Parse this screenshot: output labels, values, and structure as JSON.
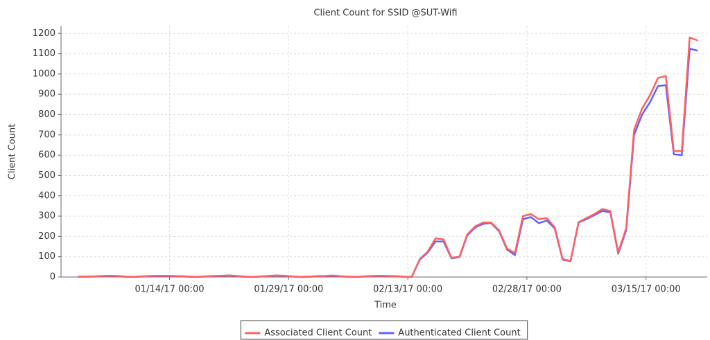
{
  "chart_data": {
    "type": "line",
    "title": "Client Count for SSID @SUT-Wifi",
    "x_label": "Time",
    "y_label": "Client Count",
    "x": [
      "01/02/17 12:00",
      "01/03/17 12:00",
      "01/04/17 12:00",
      "01/05/17 12:00",
      "01/06/17 12:00",
      "01/07/17 12:00",
      "01/08/17 12:00",
      "01/09/17 12:00",
      "01/10/17 12:00",
      "01/11/17 12:00",
      "01/12/17 12:00",
      "01/13/17 12:00",
      "01/14/17 12:00",
      "01/15/17 12:00",
      "01/16/17 12:00",
      "01/17/17 12:00",
      "01/18/17 12:00",
      "01/19/17 12:00",
      "01/20/17 12:00",
      "01/21/17 12:00",
      "01/22/17 12:00",
      "01/23/17 12:00",
      "01/24/17 12:00",
      "01/25/17 12:00",
      "01/26/17 12:00",
      "01/27/17 12:00",
      "01/28/17 12:00",
      "01/29/17 12:00",
      "01/30/17 12:00",
      "01/31/17 12:00",
      "02/01/17 12:00",
      "02/02/17 12:00",
      "02/03/17 12:00",
      "02/04/17 12:00",
      "02/05/17 12:00",
      "02/06/17 12:00",
      "02/07/17 12:00",
      "02/08/17 12:00",
      "02/09/17 12:00",
      "02/10/17 12:00",
      "02/11/17 12:00",
      "02/12/17 12:00",
      "02/13/17 12:00",
      "02/14/17 12:00",
      "02/15/17 12:00",
      "02/16/17 12:00",
      "02/17/17 12:00",
      "02/18/17 12:00",
      "02/19/17 12:00",
      "02/20/17 12:00",
      "02/21/17 12:00",
      "02/22/17 12:00",
      "02/23/17 12:00",
      "02/24/17 12:00",
      "02/25/17 12:00",
      "02/26/17 12:00",
      "02/27/17 12:00",
      "02/28/17 12:00",
      "03/01/17 12:00",
      "03/02/17 12:00",
      "03/03/17 12:00",
      "03/04/17 12:00",
      "03/05/17 12:00",
      "03/06/17 12:00",
      "03/07/17 12:00",
      "03/08/17 12:00",
      "03/09/17 12:00",
      "03/10/17 12:00",
      "03/11/17 12:00",
      "03/12/17 12:00",
      "03/13/17 12:00",
      "03/14/17 12:00",
      "03/15/17 12:00",
      "03/16/17 12:00",
      "03/17/17 12:00",
      "03/18/17 12:00",
      "03/19/17 12:00",
      "03/20/17 12:00",
      "03/21/17 12:00"
    ],
    "series": [
      {
        "name": "Associated Client Count",
        "color": "#ff6060",
        "values": [
          2,
          2,
          3,
          5,
          6,
          5,
          2,
          1,
          3,
          5,
          6,
          6,
          5,
          4,
          2,
          1,
          3,
          5,
          6,
          8,
          5,
          2,
          1,
          3,
          5,
          8,
          6,
          3,
          1,
          2,
          4,
          5,
          7,
          4,
          2,
          1,
          3,
          5,
          6,
          5,
          4,
          2,
          0,
          88,
          125,
          190,
          185,
          95,
          100,
          210,
          250,
          268,
          268,
          230,
          140,
          118,
          300,
          310,
          285,
          290,
          245,
          88,
          80,
          270,
          290,
          310,
          335,
          325,
          120,
          240,
          725,
          830,
          895,
          980,
          990,
          620,
          620,
          1180,
          1165
        ]
      },
      {
        "name": "Authenticated Client Count",
        "color": "#6060ff",
        "values": [
          1,
          1,
          2,
          4,
          5,
          4,
          1,
          0,
          2,
          4,
          5,
          5,
          4,
          3,
          1,
          0,
          2,
          4,
          5,
          7,
          4,
          1,
          0,
          2,
          4,
          7,
          5,
          2,
          0,
          1,
          3,
          4,
          6,
          3,
          1,
          0,
          2,
          4,
          5,
          4,
          3,
          1,
          0,
          85,
          120,
          175,
          175,
          92,
          98,
          205,
          245,
          262,
          265,
          225,
          135,
          108,
          285,
          295,
          265,
          278,
          240,
          85,
          78,
          268,
          285,
          305,
          325,
          318,
          115,
          230,
          700,
          800,
          860,
          940,
          945,
          605,
          600,
          1125,
          1115
        ]
      }
    ],
    "xlim": [
      "12/31/16 08:00",
      "03/22/17 17:00"
    ],
    "xticks": [
      "01/14/17 00:00",
      "01/29/17 00:00",
      "02/13/17 00:00",
      "02/28/17 00:00",
      "03/15/17 00:00"
    ],
    "ylim": [
      0,
      1235
    ],
    "yticks": [
      0,
      100,
      200,
      300,
      400,
      500,
      600,
      700,
      800,
      900,
      1000,
      1100,
      1200
    ],
    "grid": true,
    "legend": "bottom"
  }
}
